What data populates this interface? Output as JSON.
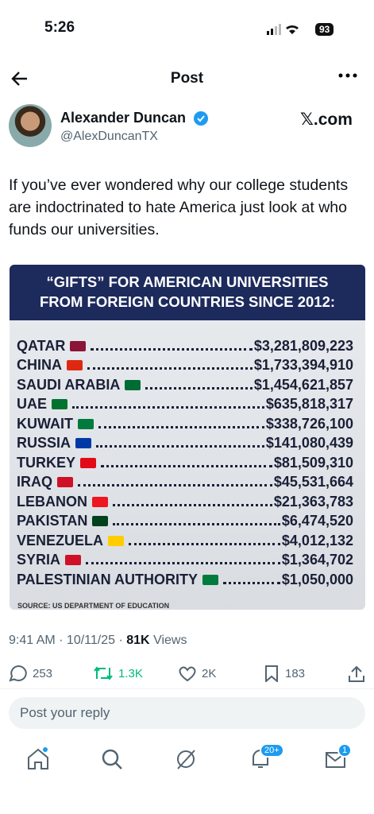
{
  "status_bar": {
    "time": "5:26",
    "battery": "93"
  },
  "header": {
    "title": "Post"
  },
  "post": {
    "author_name": "Alexander Duncan",
    "handle": "@AlexDuncanTX",
    "site": "𝕏.com",
    "text": "If you’ve ever wondered why our college students are indoctrinated to hate America just look at who funds our universities.",
    "image": {
      "title_line1": "“GIFTS” FOR AMERICAN UNIVERSITIES",
      "title_line2": "FROM FOREIGN COUNTRIES SINCE 2012:",
      "rows": [
        {
          "country": "QATAR",
          "amount": "$3,281,809,223"
        },
        {
          "country": "CHINA",
          "amount": "$1,733,394,910"
        },
        {
          "country": "SAUDI ARABIA",
          "amount": "$1,454,621,857"
        },
        {
          "country": "UAE",
          "amount": "$635,818,317"
        },
        {
          "country": "KUWAIT",
          "amount": "$338,726,100"
        },
        {
          "country": "RUSSIA",
          "amount": "$141,080,439"
        },
        {
          "country": "TURKEY",
          "amount": "$81,509,310"
        },
        {
          "country": "IRAQ",
          "amount": "$45,531,664"
        },
        {
          "country": "LEBANON",
          "amount": "$21,363,783"
        },
        {
          "country": "PAKISTAN",
          "amount": "$6,474,520"
        },
        {
          "country": "VENEZUELA",
          "amount": "$4,012,132"
        },
        {
          "country": "SYRIA",
          "amount": "$1,364,702"
        },
        {
          "country": "PALESTINIAN AUTHORITY",
          "amount": "$1,050,000"
        }
      ],
      "source": "SOURCE: US DEPARTMENT OF EDUCATION"
    },
    "timestamp": "9:41 AM · 10/11/25 ·",
    "views": "81K",
    "views_label": "Views",
    "stats": {
      "replies": "253",
      "reposts": "1.3K",
      "likes": "2K",
      "bookmarks": "183"
    }
  },
  "reply_placeholder": "Post your reply",
  "nav": {
    "notifications_badge": "20+",
    "messages_badge": "1"
  }
}
